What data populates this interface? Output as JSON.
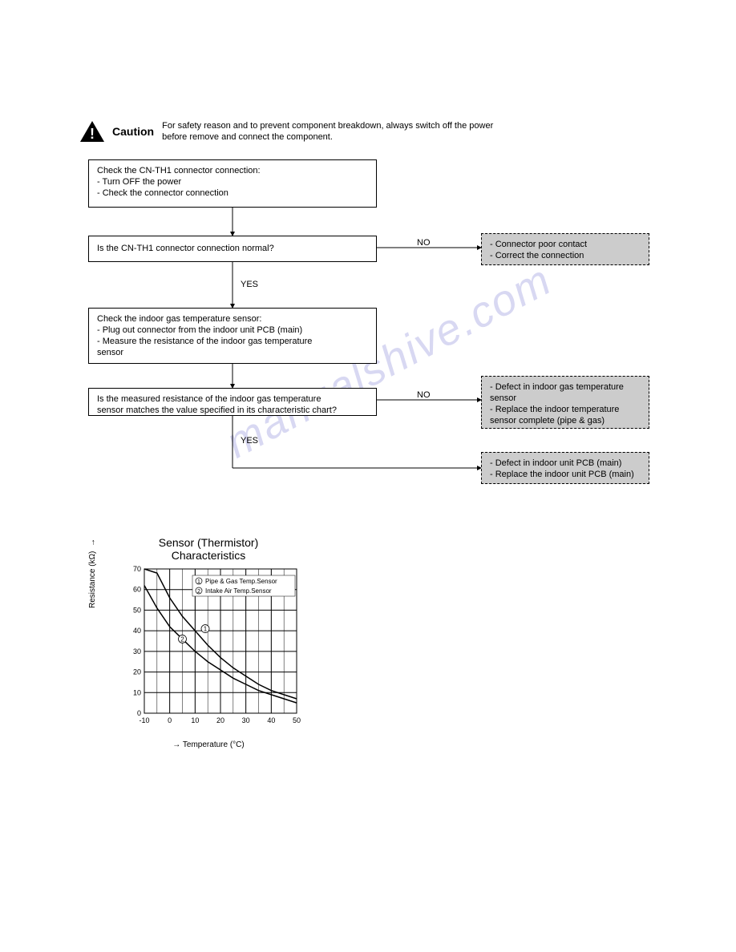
{
  "watermark": "manualshive.com",
  "caution": {
    "label": "Caution",
    "text": "For safety reason and to prevent component breakdown, always switch off the power before remove and connect the component."
  },
  "flow": {
    "box_a": {
      "l1": "Check the CN-TH1 connector connection:",
      "l2": "- Turn OFF the power",
      "l3": "- Check the connector connection"
    },
    "box_b": {
      "l1": "Is the CN-TH1 connector connection normal?"
    },
    "box_c": {
      "l1": "Check the indoor gas temperature sensor:",
      "l2": "- Plug out connector from the indoor unit PCB (main)",
      "l3": "- Measure the resistance of the indoor gas temperature",
      "l4": "  sensor"
    },
    "box_d": {
      "l1": "Is the measured resistance of the indoor gas temperature",
      "l2": "sensor matches the value specified in its characteristic chart?"
    },
    "result_b": {
      "l1": "- Connector poor contact",
      "l2": "- Correct the connection"
    },
    "result_d": {
      "l1": "- Defect in indoor gas temperature sensor",
      "l2": "- Replace the indoor temperature sensor complete (pipe & gas)"
    },
    "result_e": {
      "l1": "- Defect in indoor unit PCB (main)",
      "l2": "- Replace the indoor unit PCB (main)"
    },
    "labels": {
      "yes": "YES",
      "no": "NO"
    }
  },
  "chart": {
    "title_l1": "Sensor (Thermistor)",
    "title_l2": "Characteristics",
    "y_label": "Resistance (kΩ)",
    "x_label": "Temperature (°C)",
    "legend_1": "Pipe & Gas Temp.Sensor",
    "legend_2": "Intake Air Temp.Sensor",
    "x_ticks": [
      "-10",
      "0",
      "10",
      "20",
      "30",
      "40",
      "50"
    ],
    "y_ticks": [
      "0",
      "10",
      "20",
      "30",
      "40",
      "50",
      "60",
      "70"
    ],
    "xlim": [
      -10,
      50
    ],
    "ylim": [
      0,
      70
    ],
    "grid_color": "#000000",
    "bg_color": "#ffffff",
    "curve_width": 1.5,
    "series": [
      {
        "name": "pipe_gas",
        "label_num": "1",
        "points": [
          [
            -10,
            82
          ],
          [
            -5,
            68
          ],
          [
            0,
            56
          ],
          [
            5,
            47
          ],
          [
            10,
            40
          ],
          [
            15,
            33
          ],
          [
            20,
            27
          ],
          [
            25,
            22
          ],
          [
            30,
            18
          ],
          [
            35,
            14
          ],
          [
            40,
            11
          ],
          [
            45,
            9
          ],
          [
            50,
            7
          ]
        ]
      },
      {
        "name": "intake_air",
        "label_num": "2",
        "points": [
          [
            -10,
            62
          ],
          [
            -5,
            51
          ],
          [
            0,
            42
          ],
          [
            5,
            36
          ],
          [
            10,
            30
          ],
          [
            15,
            25
          ],
          [
            20,
            21
          ],
          [
            25,
            17
          ],
          [
            30,
            14
          ],
          [
            35,
            11
          ],
          [
            40,
            9
          ],
          [
            45,
            7
          ],
          [
            50,
            5
          ]
        ]
      }
    ],
    "markers": [
      {
        "num": "1",
        "x": 14,
        "y": 41
      },
      {
        "num": "2",
        "x": 5,
        "y": 36
      }
    ]
  }
}
